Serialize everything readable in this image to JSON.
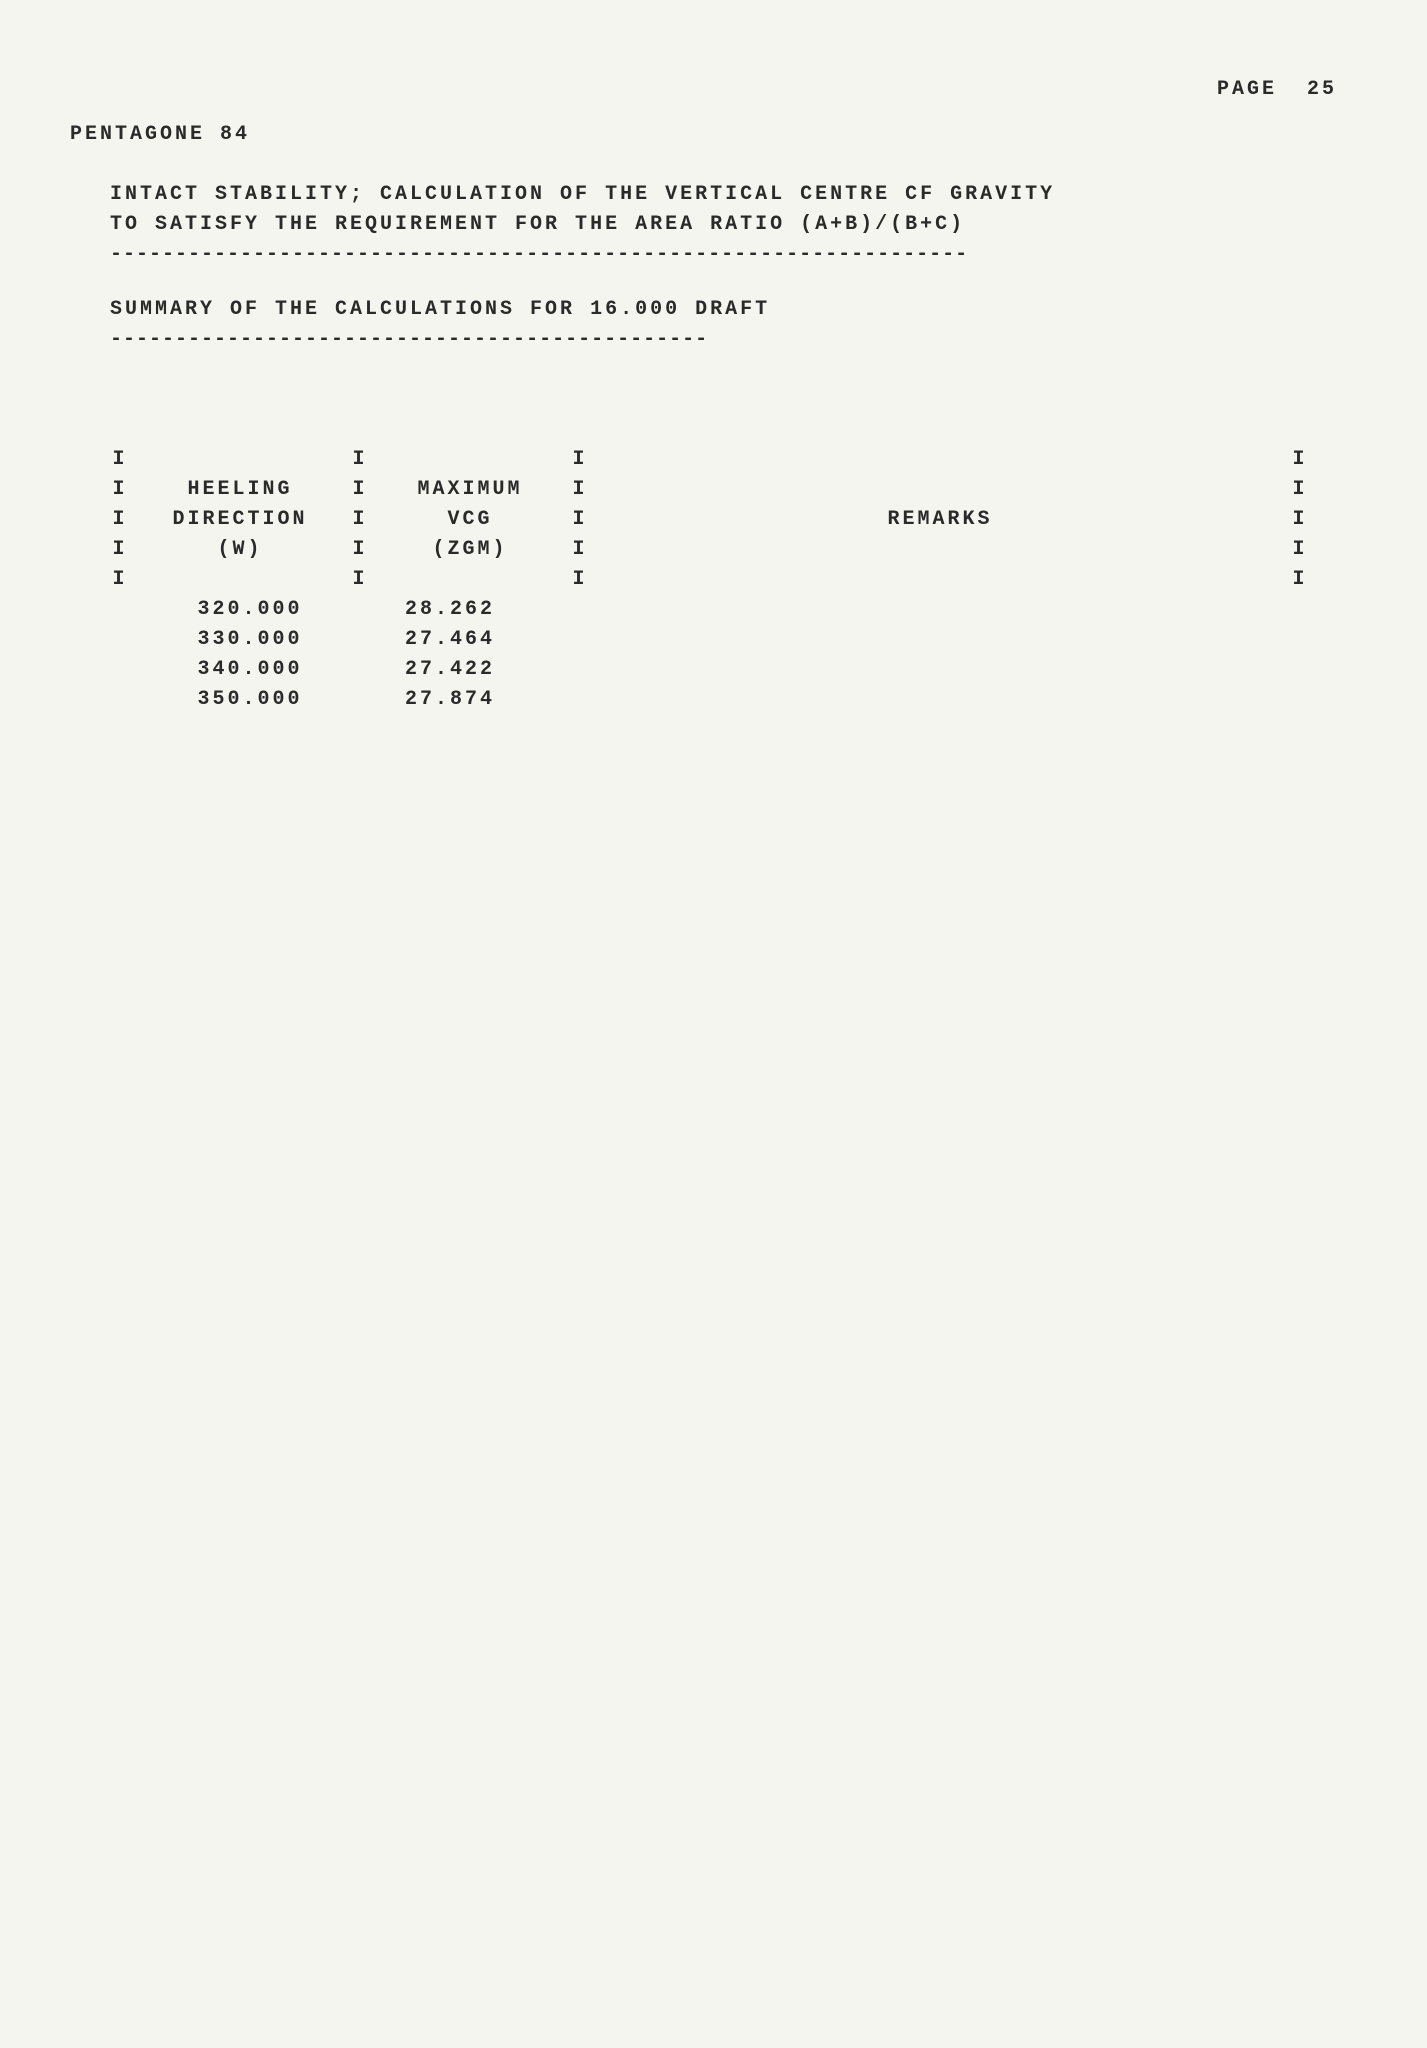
{
  "page": {
    "label": "PAGE",
    "number": "25"
  },
  "doc_title": "PENTAGONE 84",
  "section": {
    "line1": "INTACT STABILITY;  CALCULATION OF THE VERTICAL CENTRE CF GRAVITY",
    "line2": "TO SATISFY THE REQUIREMENT FOR THE AREA RATIO (A+B)/(B+C)"
  },
  "rule_long": "------------------------------------------------------------------",
  "summary": "SUMMARY OF THE CALCULATIONS FOR  16.000 DRAFT",
  "rule_short": "----------------------------------------------",
  "table": {
    "pipe": "I",
    "headers": {
      "col1": {
        "l1": "HEELING",
        "l2": "DIRECTION",
        "l3": "(W)"
      },
      "col2": {
        "l1": "MAXIMUM",
        "l2": "VCG",
        "l3": "(ZGM)"
      },
      "col3": {
        "l1": "",
        "l2": "REMARKS",
        "l3": ""
      }
    },
    "rows": [
      {
        "w": "320.000",
        "zgm": "28.262"
      },
      {
        "w": "330.000",
        "zgm": "27.464"
      },
      {
        "w": "340.000",
        "zgm": "27.422"
      },
      {
        "w": "350.000",
        "zgm": "27.874"
      }
    ]
  },
  "style": {
    "font_family": "Courier New",
    "font_size_pt": 15,
    "font_weight": "bold",
    "text_color": "#2a2a2a",
    "background_color": "#f5f5f0",
    "letter_spacing_em": 0.15
  }
}
